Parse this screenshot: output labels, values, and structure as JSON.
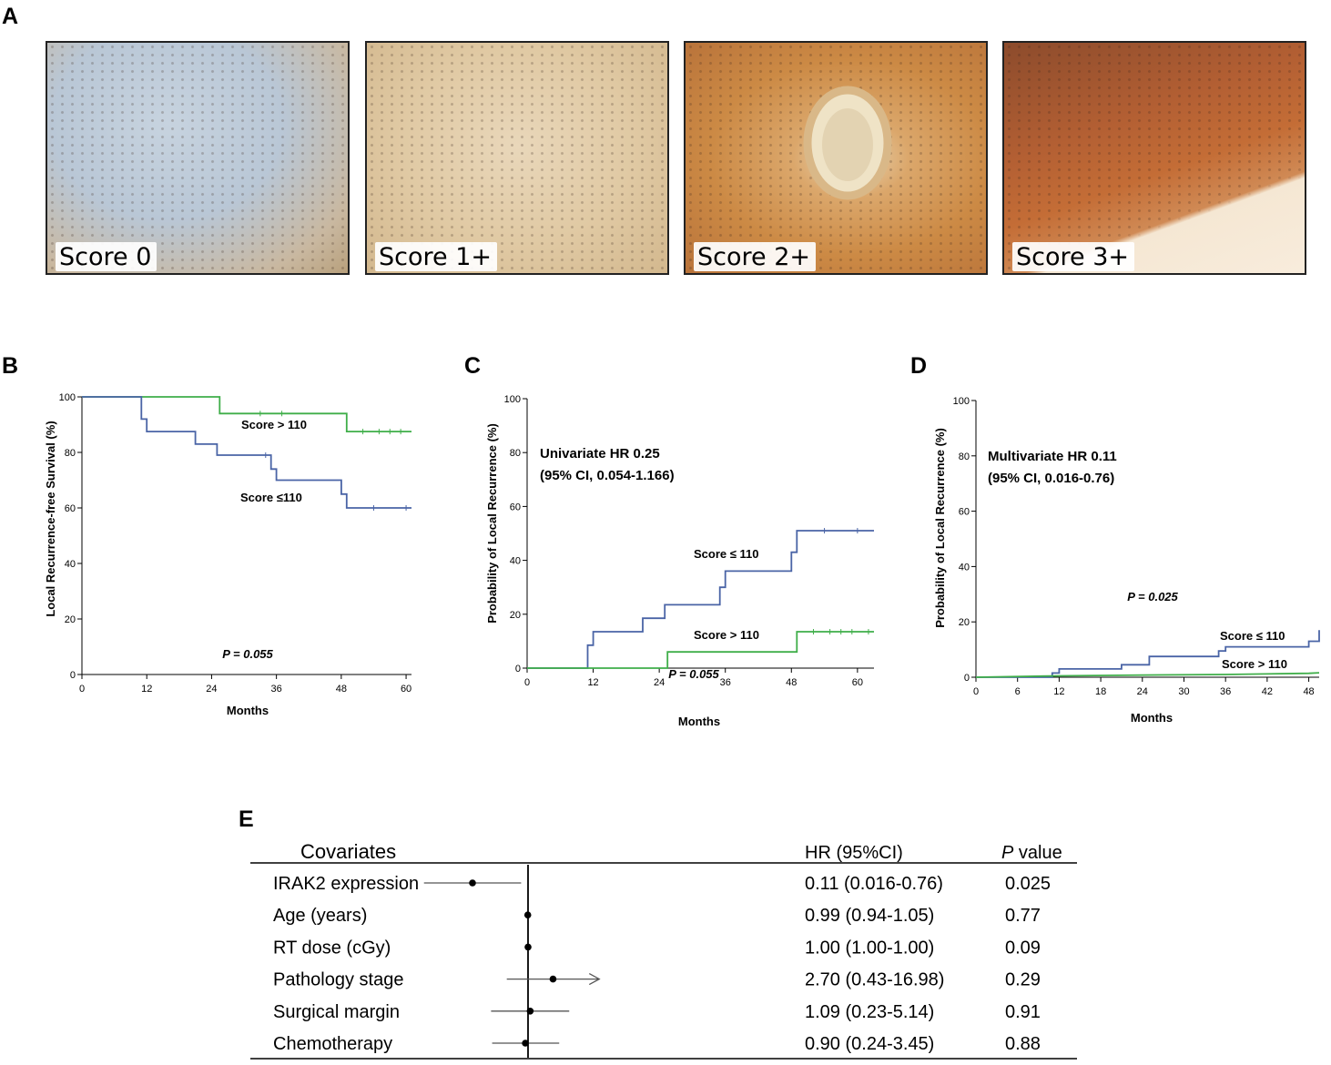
{
  "panels": {
    "a": "A",
    "b": "B",
    "c": "C",
    "d": "D",
    "e": "E"
  },
  "ihc_images": [
    {
      "label": "Score 0"
    },
    {
      "label": "Score 1+"
    },
    {
      "label": "Score 2+"
    },
    {
      "label": "Score 3+"
    }
  ],
  "colors": {
    "low_score": "#4a64a6",
    "high_score": "#3fae49",
    "axis": "#000000"
  },
  "chart_data": [
    {
      "panel": "B",
      "type": "line",
      "step": true,
      "xlabel": "Months",
      "ylabel": "Local Recurrence-free Survival (%)",
      "xlim": [
        0,
        61
      ],
      "ylim": [
        0,
        100
      ],
      "xticks": [
        0,
        12,
        24,
        36,
        48,
        60
      ],
      "yticks": [
        0,
        20,
        40,
        60,
        80,
        100
      ],
      "annotation": "P = 0.055",
      "series": [
        {
          "name": "Score > 110",
          "color": "#3fae49",
          "x": [
            0,
            25.5,
            25.5,
            49,
            49,
            61
          ],
          "y": [
            100,
            100,
            94,
            94,
            87.5,
            87.5
          ],
          "censor_x": [
            33,
            37,
            52,
            55,
            57,
            59
          ]
        },
        {
          "name": "Score ≤110",
          "color": "#4a64a6",
          "x": [
            0,
            11,
            11,
            12,
            12,
            21,
            21,
            25,
            25,
            35,
            35,
            36,
            36,
            48,
            48,
            49,
            49,
            61
          ],
          "y": [
            100,
            100,
            92,
            92,
            87.5,
            87.5,
            83,
            83,
            79,
            79,
            74,
            74,
            70,
            70,
            65,
            65,
            60,
            60
          ],
          "censor_x": [
            34,
            54,
            60
          ]
        }
      ]
    },
    {
      "panel": "C",
      "type": "line",
      "step": true,
      "xlabel": "Months",
      "ylabel": "Probability of Local Recurrence (%)",
      "xlim": [
        0,
        63
      ],
      "ylim": [
        0,
        100
      ],
      "xticks": [
        0,
        12,
        24,
        36,
        48,
        60
      ],
      "yticks": [
        0,
        20,
        40,
        60,
        80,
        100
      ],
      "annotation": "P = 0.055",
      "hr_text": [
        "Univariate HR 0.25",
        "(95% CI, 0.054-1.166)"
      ],
      "series": [
        {
          "name": "Score ≤ 110",
          "color": "#4a64a6",
          "x": [
            0,
            11,
            11,
            12,
            12,
            21,
            21,
            25,
            25,
            35,
            35,
            36,
            36,
            48,
            48,
            49,
            49,
            63
          ],
          "y": [
            0,
            0,
            8.5,
            8.5,
            13.5,
            13.5,
            18.5,
            18.5,
            23.5,
            23.5,
            30,
            30,
            36,
            36,
            43,
            43,
            51,
            51
          ],
          "censor_x": [
            54,
            60
          ]
        },
        {
          "name": "Score > 110",
          "color": "#3fae49",
          "x": [
            0,
            25.5,
            25.5,
            49,
            49,
            63
          ],
          "y": [
            0,
            0,
            6,
            6,
            13.5,
            13.5
          ],
          "censor_x": [
            52,
            55,
            57,
            59,
            62
          ]
        }
      ]
    },
    {
      "panel": "D",
      "type": "line",
      "step": true,
      "xlabel": "Months",
      "ylabel": "Probability of Local Recurrence (%)",
      "xlim": [
        0,
        49.5
      ],
      "ylim": [
        0,
        100
      ],
      "xticks": [
        0,
        6,
        12,
        18,
        24,
        30,
        36,
        42,
        48
      ],
      "yticks": [
        0,
        20,
        40,
        60,
        80,
        100
      ],
      "annotation": "P = 0.025",
      "hr_text": [
        "Multivariate HR 0.11",
        "(95% CI, 0.016-0.76)"
      ],
      "series": [
        {
          "name": "Score ≤ 110",
          "color": "#4a64a6",
          "x": [
            0,
            11,
            11,
            12,
            12,
            21,
            21,
            25,
            25,
            35,
            35,
            36,
            36,
            48,
            48,
            49.5,
            49.5
          ],
          "y": [
            0,
            0,
            1.5,
            1.5,
            3,
            3,
            4.5,
            4.5,
            7.5,
            7.5,
            9.5,
            9.5,
            11,
            11,
            13,
            13,
            17
          ]
        },
        {
          "name": "Score > 110",
          "color": "#3fae49",
          "x": [
            0,
            12,
            24,
            36,
            48,
            49.5
          ],
          "y": [
            0,
            0.5,
            0.8,
            1.0,
            1.4,
            1.6
          ]
        }
      ]
    },
    {
      "panel": "E",
      "type": "forest",
      "header": {
        "covariates": "Covariates",
        "hr": "HR (95%CI)",
        "p_italic": "P",
        "p_rest": " value"
      },
      "scale": "log",
      "reference": 1,
      "rows": [
        {
          "label": "IRAK2 expression",
          "hr": 0.11,
          "lo": 0.016,
          "hi": 0.76,
          "text": "0.11 (0.016-0.76)",
          "p": "0.025"
        },
        {
          "label": "Age (years)",
          "hr": 0.99,
          "lo": 0.94,
          "hi": 1.05,
          "text": "0.99 (0.94-1.05)",
          "p": "0.77"
        },
        {
          "label": "RT dose (cGy)",
          "hr": 1.0,
          "lo": 1.0,
          "hi": 1.0,
          "text": "1.00 (1.00-1.00)",
          "p": "0.09"
        },
        {
          "label": "Pathology stage",
          "hr": 2.7,
          "lo": 0.43,
          "hi": 16.98,
          "text": "2.70 (0.43-16.98)",
          "p": "0.29",
          "arrow_right": true
        },
        {
          "label": "Surgical margin",
          "hr": 1.09,
          "lo": 0.23,
          "hi": 5.14,
          "text": "1.09 (0.23-5.14)",
          "p": "0.91"
        },
        {
          "label": "Chemotherapy",
          "hr": 0.9,
          "lo": 0.24,
          "hi": 3.45,
          "text": "0.90 (0.24-3.45)",
          "p": "0.88"
        }
      ]
    }
  ]
}
